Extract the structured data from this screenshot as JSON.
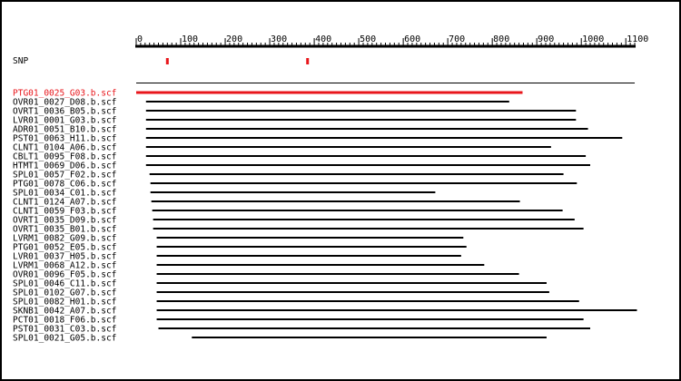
{
  "colors": {
    "read_line": "#000000",
    "highlight": "#e8161b",
    "axis": "#000000",
    "text": "#000000",
    "background": "#ffffff"
  },
  "axis": {
    "min": 0,
    "max": 1120,
    "tick_step": 100,
    "tick_labels": [
      "0",
      "100",
      "200",
      "300",
      "400",
      "500",
      "600",
      "700",
      "800",
      "900",
      "1000",
      "1100"
    ]
  },
  "snp": {
    "label": "SNP",
    "positions": [
      70,
      385
    ]
  },
  "reference": {
    "start": 0,
    "end": 1120
  },
  "reads": [
    {
      "name": "PTG01_0025_G03.b.scf",
      "start": 0,
      "end": 868,
      "highlight": true
    },
    {
      "name": "OVR01_0027_D08.b.scf",
      "start": 22,
      "end": 838
    },
    {
      "name": "OVRT1_0036_B05.b.scf",
      "start": 22,
      "end": 988
    },
    {
      "name": "LVR01_0001_G03.b.scf",
      "start": 22,
      "end": 988
    },
    {
      "name": "ADR01_0051_B10.b.scf",
      "start": 22,
      "end": 1015
    },
    {
      "name": "PST01_0063_H11.b.scf",
      "start": 22,
      "end": 1092
    },
    {
      "name": "CLNT1_0104_A06.b.scf",
      "start": 22,
      "end": 932
    },
    {
      "name": "CBLT1_0095_F08.b.scf",
      "start": 22,
      "end": 1010
    },
    {
      "name": "HTMT1_0069_D06.b.scf",
      "start": 22,
      "end": 1020
    },
    {
      "name": "SPL01_0057_F02.b.scf",
      "start": 30,
      "end": 960
    },
    {
      "name": "PTG01_0078_C06.b.scf",
      "start": 32,
      "end": 990
    },
    {
      "name": "SPL01_0034_C01.b.scf",
      "start": 32,
      "end": 672
    },
    {
      "name": "CLNT1_0124_A07.b.scf",
      "start": 34,
      "end": 862
    },
    {
      "name": "CLNT1_0059_F03.b.scf",
      "start": 36,
      "end": 958
    },
    {
      "name": "OVRT1_0035_D09.b.scf",
      "start": 38,
      "end": 985
    },
    {
      "name": "OVRT1_0035_B01.b.scf",
      "start": 38,
      "end": 1005
    },
    {
      "name": "LVRM1_0082_G09.b.scf",
      "start": 46,
      "end": 735
    },
    {
      "name": "PTG01_0052_E05.b.scf",
      "start": 46,
      "end": 742
    },
    {
      "name": "LVR01_0037_H05.b.scf",
      "start": 46,
      "end": 730
    },
    {
      "name": "LVRM1_0068_A12.b.scf",
      "start": 46,
      "end": 782
    },
    {
      "name": "OVR01_0096_F05.b.scf",
      "start": 46,
      "end": 860
    },
    {
      "name": "SPL01_0046_C11.b.scf",
      "start": 46,
      "end": 922
    },
    {
      "name": "SPL01_0102_G07.b.scf",
      "start": 46,
      "end": 928
    },
    {
      "name": "SPL01_0082_H01.b.scf",
      "start": 46,
      "end": 995
    },
    {
      "name": "SKNB1_0042_A07.b.scf",
      "start": 46,
      "end": 1125
    },
    {
      "name": "PCT01_0018_F06.b.scf",
      "start": 46,
      "end": 1005
    },
    {
      "name": "PST01_0031_C03.b.scf",
      "start": 50,
      "end": 1020
    },
    {
      "name": "SPL01_0021_G05.b.scf",
      "start": 125,
      "end": 922
    }
  ]
}
